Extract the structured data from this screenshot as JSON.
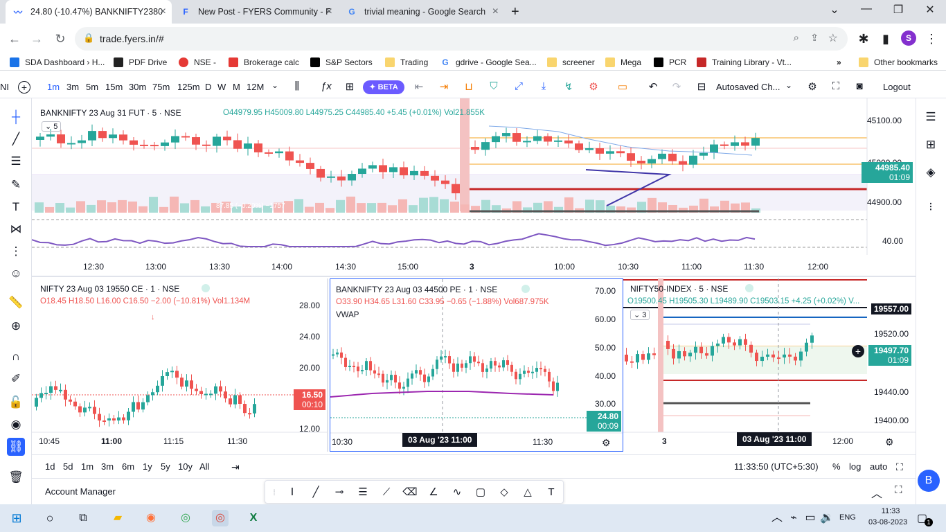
{
  "browser": {
    "tabs": [
      {
        "label": "24.80 (-10.47%) BANKNIFTY2380",
        "icon": "tradingview-icon",
        "active": true
      },
      {
        "label": "New Post - FYERS Community - F",
        "icon": "fyers-icon",
        "active": false
      },
      {
        "label": "trivial meaning - Google Search",
        "icon": "google-icon",
        "active": false
      }
    ],
    "url": "trade.fyers.in/#",
    "profile_initial": "S",
    "bookmarks": [
      "SDA Dashboard › H...",
      "PDF Drive",
      "NSE -",
      "Brokerage calc",
      "S&P Sectors",
      "Trading",
      "gdrive - Google Sea...",
      "screener",
      "Mega",
      "PCR",
      "Training Library - Vt..."
    ],
    "other_bookmarks": "Other bookmarks"
  },
  "toolbar": {
    "left_fragment": "NI",
    "timeframes": [
      "1m",
      "3m",
      "5m",
      "15m",
      "30m",
      "75m",
      "125m",
      "D",
      "W",
      "M",
      "12M"
    ],
    "active_timeframe": "1m",
    "beta_label": "BETA",
    "layout_name": "Autosaved Ch...",
    "logout": "Logout"
  },
  "main_chart": {
    "title": "BANKNIFTY 23 Aug 31 FUT · 5 · NSE",
    "ohlc": "O44979.95 H45009.80 L44975.25 C44985.40 +5.45 (+0.01%) Vol21.855K",
    "indicator_count": "5",
    "vol_text": "87.85 (−0.20%) −1757",
    "price_ticks": [
      "45100.00",
      "44900.00",
      "40.00"
    ],
    "hidden_tick": "45000.00",
    "last_price": "44985.40",
    "countdown": "01:09",
    "time_ticks": [
      "12:30",
      "13:00",
      "13:30",
      "14:00",
      "14:30",
      "15:00",
      "3",
      "10:00",
      "10:30",
      "11:00",
      "11:30",
      "12:00"
    ]
  },
  "pane_nifty_ce": {
    "title": "NIFTY 23 Aug 03 19550 CE · 1 · NSE",
    "ohlc": {
      "o": "O18.45",
      "h": "H18.50",
      "l": "L16.00",
      "c": "C16.50",
      "chg": "−2.00 (−10.81%)",
      "vol": "Vol1.134M"
    },
    "price_ticks": [
      "28.00",
      "24.00",
      "20.00",
      "12.00"
    ],
    "last_price": "16.50",
    "countdown": "00:10",
    "time_ticks": [
      "10:45",
      "11:00",
      "11:15",
      "11:30"
    ],
    "marker": "↓"
  },
  "pane_bnf_pe": {
    "title": "BANKNIFTY 23 Aug 03 44500 PE · 1 · NSE",
    "ohlc": "O33.90 H34.65 L31.60 C33.95 −0.65 (−1.88%) Vol687.975K",
    "indicator": "VWAP",
    "price_ticks": [
      "70.00",
      "60.00",
      "50.00",
      "40.00",
      "30.00"
    ],
    "last_price": "24.80",
    "countdown": "00:09",
    "time_ticks": [
      "10:30",
      "11:30"
    ],
    "crosshair_time": "03 Aug '23  11:00"
  },
  "pane_nifty_index": {
    "title": "NIFTY50-INDEX · 5 · NSE",
    "ohlc": "O19500.45 H19505.30 L19489.90 C19503.15 +4.25 (+0.02%) V...",
    "indicator_count": "3",
    "price_ticks": [
      "19520.00",
      "19440.00",
      "19400.00"
    ],
    "level_label": "19557.00",
    "last_price": "19497.70",
    "countdown": "01:09",
    "time_ticks": [
      "3",
      "12:00"
    ],
    "crosshair_time": "03 Aug '23  11:00"
  },
  "bottom": {
    "ranges": [
      "1d",
      "5d",
      "1m",
      "3m",
      "6m",
      "1y",
      "5y",
      "10y",
      "All"
    ],
    "clock": "11:33:50 (UTC+5:30)",
    "percent": "%",
    "log": "log",
    "auto": "auto",
    "account_manager": "Account Manager",
    "user_badge": "B"
  },
  "taskbar": {
    "lang": "ENG",
    "time": "11:33",
    "date": "03-08-2023",
    "notifications": "1"
  },
  "colors": {
    "up": "#26a69a",
    "down": "#ef5350",
    "tv_blue": "#2962ff",
    "purple": "#9c27b0"
  }
}
